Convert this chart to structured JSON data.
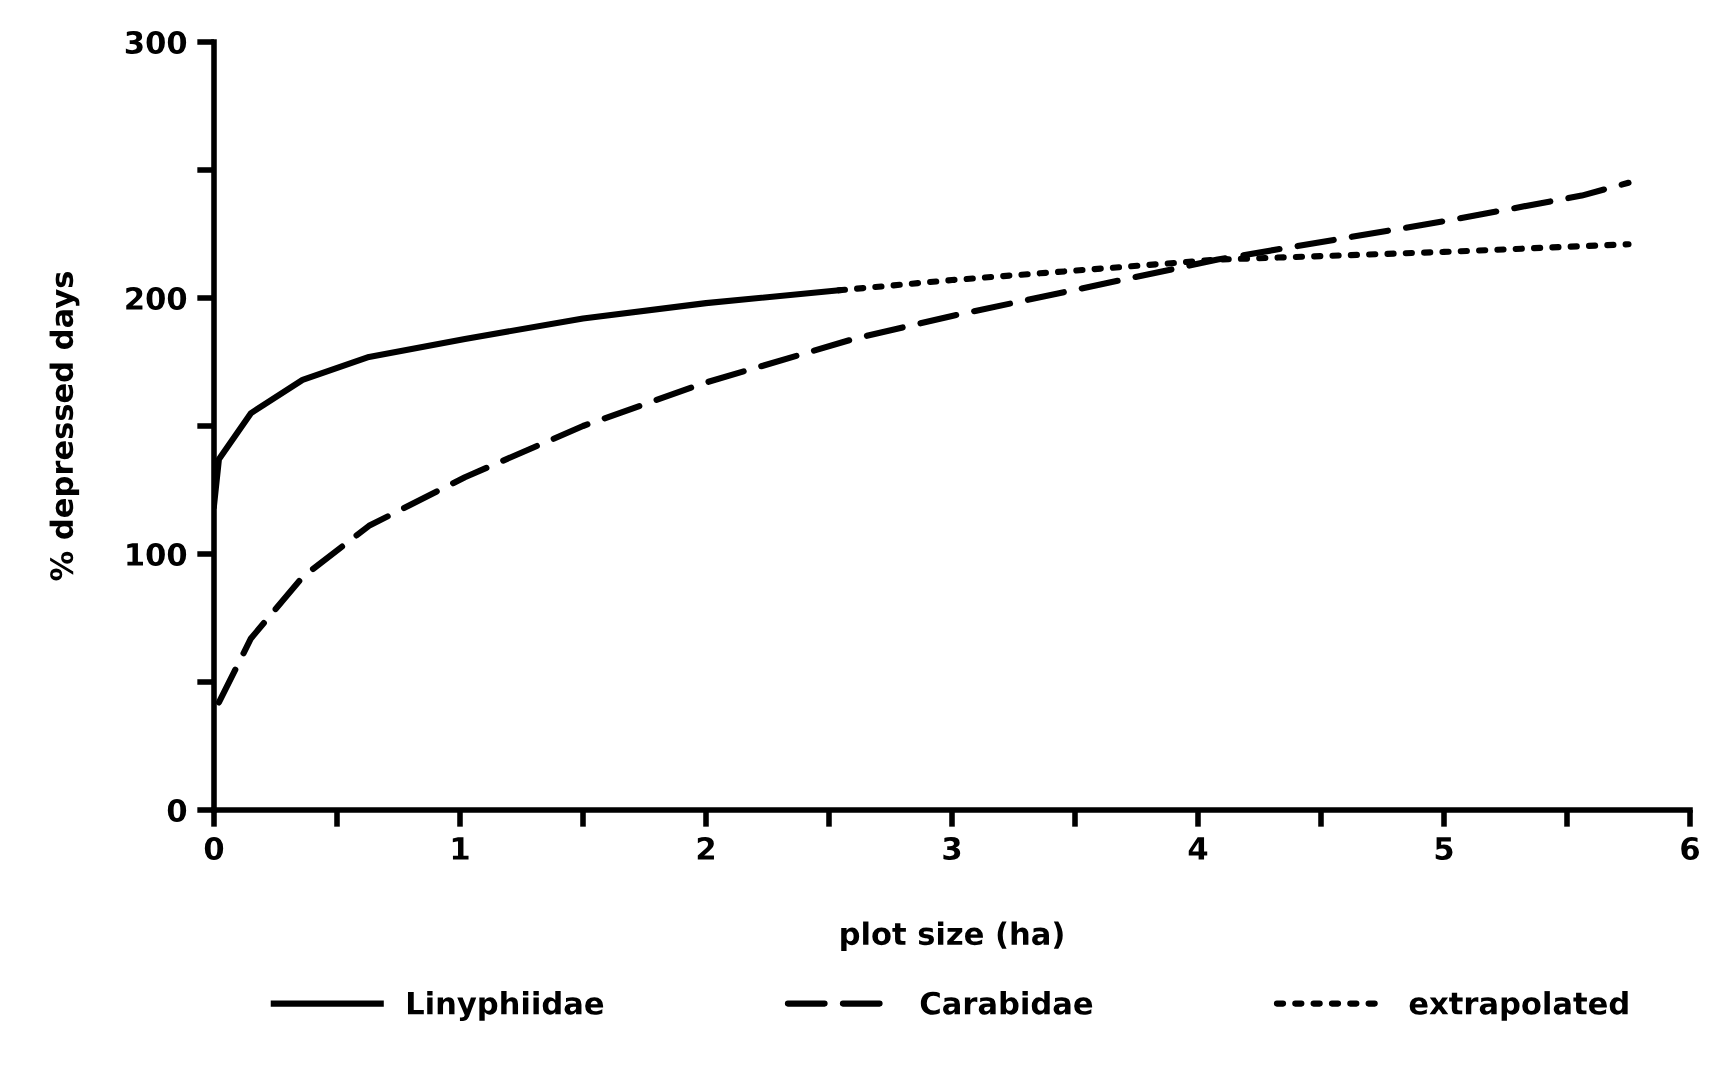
{
  "chart_data": {
    "type": "line",
    "xlabel": "plot size (ha)",
    "ylabel": "% depressed days",
    "xlim": [
      0,
      6
    ],
    "ylim": [
      0,
      300
    ],
    "xticks": [
      0,
      {
        "value": 0.5,
        "label": null
      },
      1,
      {
        "value": 1.5,
        "label": null
      },
      2,
      {
        "value": 2.5,
        "label": null
      },
      3,
      {
        "value": 3.5,
        "label": null
      },
      4,
      {
        "value": 4.5,
        "label": null
      },
      5,
      {
        "value": 5.5,
        "label": null
      },
      6
    ],
    "yticks": [
      0,
      {
        "value": 50,
        "label": null
      },
      100,
      {
        "value": 150,
        "label": null
      },
      200,
      {
        "value": 250,
        "label": null
      },
      300
    ],
    "grid": false,
    "legend": "bottom",
    "marker": "none",
    "series": [
      {
        "name": "Linyphiidae",
        "color": "#000000",
        "line_style": "solid",
        "x": [
          0.0,
          0.02,
          0.15,
          0.36,
          0.63,
          1.02,
          1.5,
          2.0,
          2.54
        ],
        "values": [
          119,
          137,
          155,
          168,
          177,
          184,
          192,
          198,
          203
        ]
      },
      {
        "name": "Carabidae",
        "color": "#000000",
        "line_style": "dashed",
        "x": [
          0.02,
          0.15,
          0.36,
          0.63,
          1.02,
          1.5,
          2.0,
          2.6,
          3.0,
          4.08,
          5.0,
          5.56,
          5.75
        ],
        "values": [
          42,
          67,
          91,
          111,
          130,
          150,
          167,
          184,
          193,
          215,
          230,
          240,
          245
        ]
      },
      {
        "name": "extrapolated",
        "color": "#000000",
        "line_style": "dotted",
        "x": [
          2.54,
          3.0,
          4.08,
          5.0,
          5.75
        ],
        "values": [
          203,
          207,
          215,
          218,
          221
        ]
      }
    ]
  }
}
